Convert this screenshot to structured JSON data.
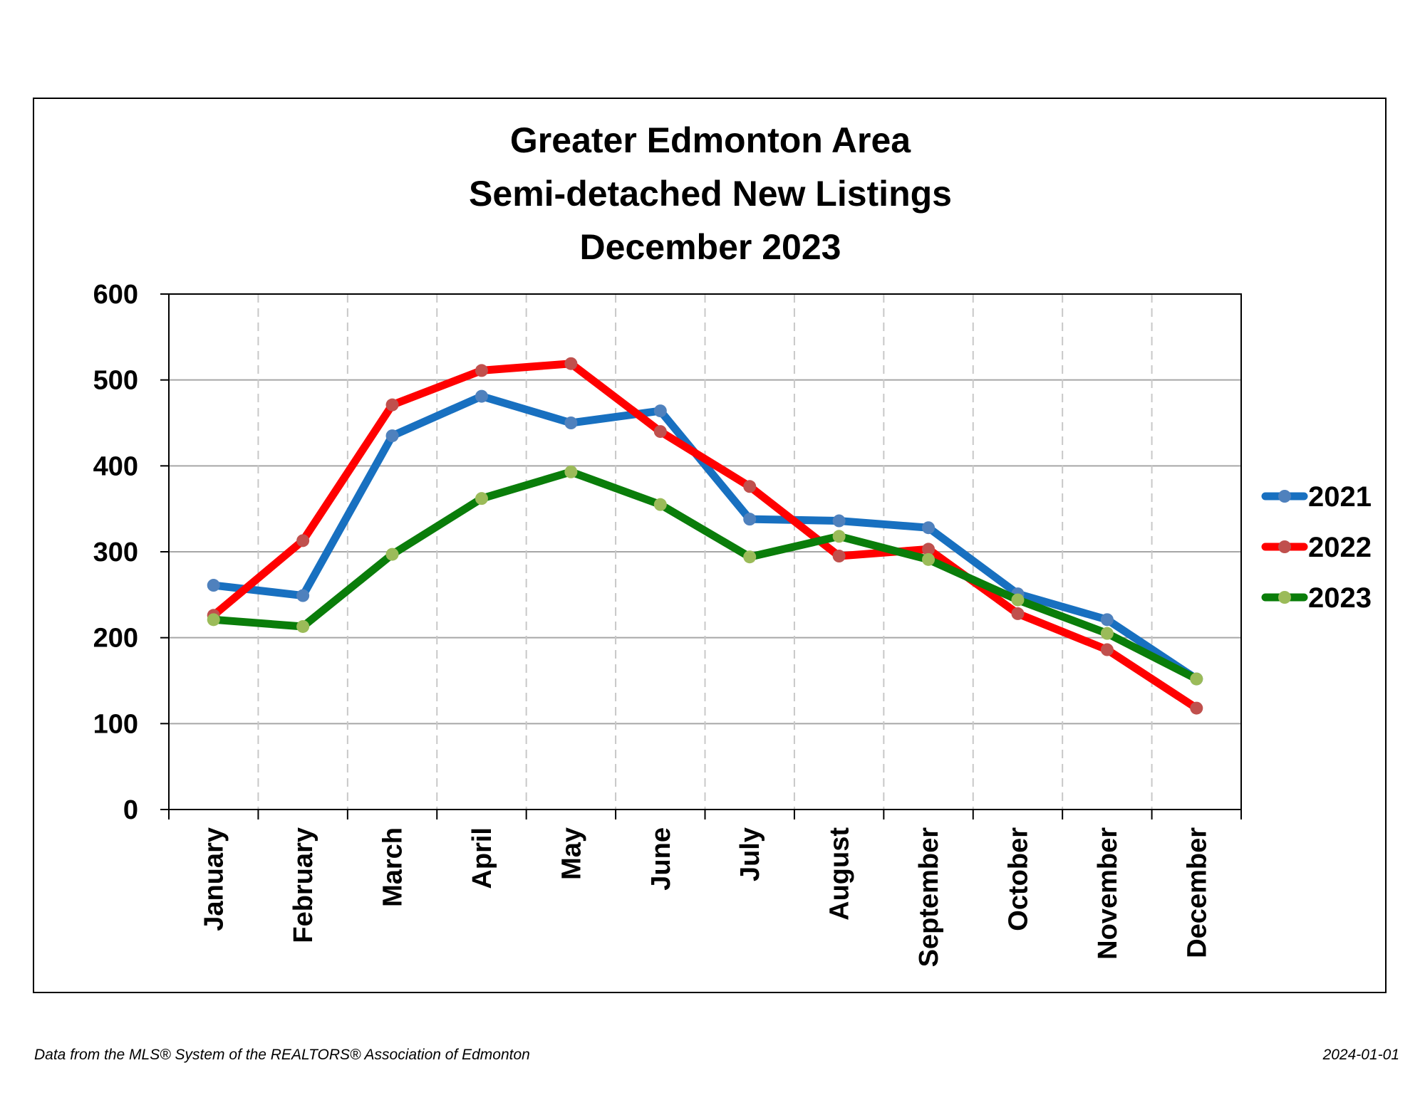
{
  "chart_data": {
    "type": "line",
    "title_lines": [
      "Greater Edmonton Area",
      "Semi-detached New Listings",
      "December 2023"
    ],
    "categories": [
      "January",
      "February",
      "March",
      "April",
      "May",
      "June",
      "July",
      "August",
      "September",
      "October",
      "November",
      "December"
    ],
    "ylim": [
      0,
      600
    ],
    "yticks": [
      "0",
      "100",
      "200",
      "300",
      "400",
      "500",
      "600"
    ],
    "grid": {
      "horizontal": "solid",
      "vertical": "dashed"
    },
    "legend_placement": "right",
    "series": [
      {
        "name": "2021",
        "color": "#1870c0",
        "marker_color": "#4f81bd",
        "values": [
          261,
          249,
          435,
          481,
          450,
          464,
          338,
          336,
          328,
          251,
          221,
          152
        ]
      },
      {
        "name": "2022",
        "color": "#ff0000",
        "marker_color": "#c0504d",
        "values": [
          226,
          313,
          471,
          511,
          519,
          440,
          376,
          295,
          303,
          228,
          186,
          118
        ]
      },
      {
        "name": "2023",
        "color": "#0a7d0a",
        "marker_color": "#9bbb59",
        "values": [
          221,
          213,
          297,
          362,
          393,
          355,
          294,
          318,
          291,
          244,
          205,
          152
        ]
      }
    ]
  },
  "footer": {
    "source": "Data from the MLS® System of the REALTORS® Association of Edmonton",
    "date": "2024-01-01"
  }
}
